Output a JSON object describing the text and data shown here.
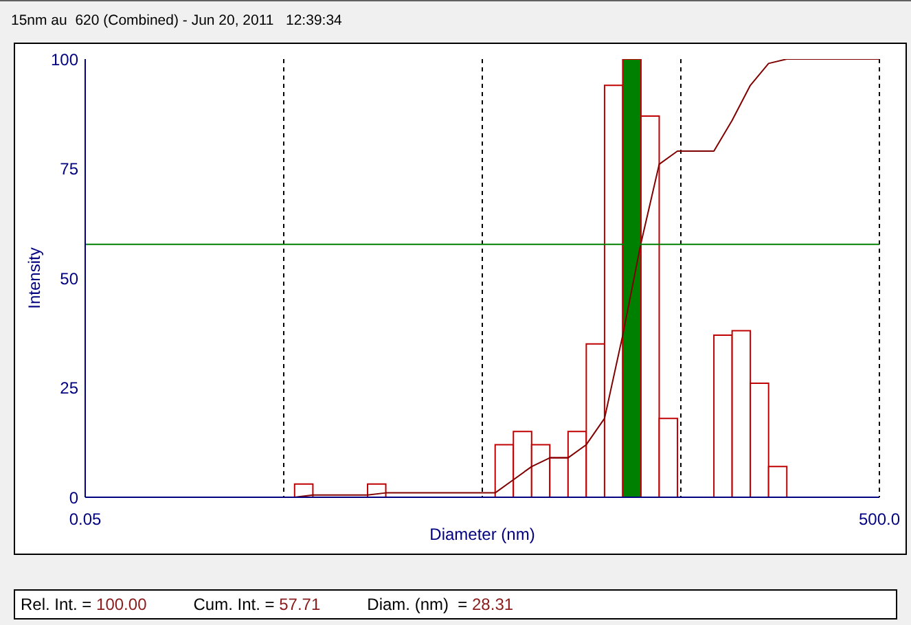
{
  "chart_data": {
    "type": "histogram",
    "title": "15nm au  620 (Combined) - Jun 20, 2011   12:39:34",
    "xlabel": "Diameter (nm)",
    "ylabel": "Intensity",
    "bins": [
      0.567,
      0.701,
      1.322,
      1.633,
      5.804,
      7.171,
      8.859,
      10.94,
      13.52,
      16.7,
      20.64,
      25.49,
      31.49,
      38.9,
      48.06,
      73.35,
      90.62,
      111.9,
      138.3,
      170.9
    ],
    "series": [
      {
        "color": "#c00000",
        "colors": [
          "#ffffff",
          "#c00000",
          "#ffffff",
          "#c00000",
          "#ffffff",
          "#ffffff",
          "#ffffff",
          "#ffffff",
          "#ffffff",
          "#ffffff",
          "#ffffff",
          "#008000",
          "#ffffff",
          "#ffffff",
          "#c00000",
          "#ffffff",
          "#ffffff",
          "#ffffff",
          "#ffffff"
        ],
        "values": [
          3,
          0,
          3,
          0,
          12,
          15,
          12,
          9,
          15,
          35,
          94,
          100,
          87,
          18,
          0,
          37,
          38,
          26,
          7
        ]
      },
      {
        "type": "line",
        "color": "#800000",
        "x": [
          0.05,
          0.567,
          0.701,
          1.322,
          1.633,
          5.804,
          7.171,
          8.859,
          10.94,
          13.52,
          16.7,
          20.64,
          25.49,
          31.49,
          38.9,
          48.06,
          73.35,
          90.62,
          111.9,
          138.3,
          170.9,
          500
        ],
        "values": [
          0,
          0,
          0.5,
          0.5,
          1,
          1,
          4,
          7,
          9,
          9,
          12,
          18,
          37,
          58,
          76,
          79,
          79,
          86,
          94,
          99,
          100,
          100
        ]
      }
    ],
    "xlim": [
      0.05,
      500
    ],
    "xticks": [
      0.05,
      {
        "value": 0.5,
        "label": null
      },
      {
        "value": 5,
        "label": null
      },
      {
        "value": 50,
        "label": null
      },
      {
        "value": 500,
        "label": "500.0"
      }
    ],
    "ylim": [
      0,
      100
    ],
    "yticks": [
      0,
      25,
      50,
      75,
      100
    ],
    "log": "x",
    "grid": "x",
    "ref_lines": [
      {
        "axis": "y",
        "value": 57.71,
        "color": "#008000"
      }
    ],
    "annotations": [
      "Rel. Int. = 100.00",
      "Cum. Int. = 57.71",
      "Diam. (nm)  = 28.31"
    ]
  }
}
